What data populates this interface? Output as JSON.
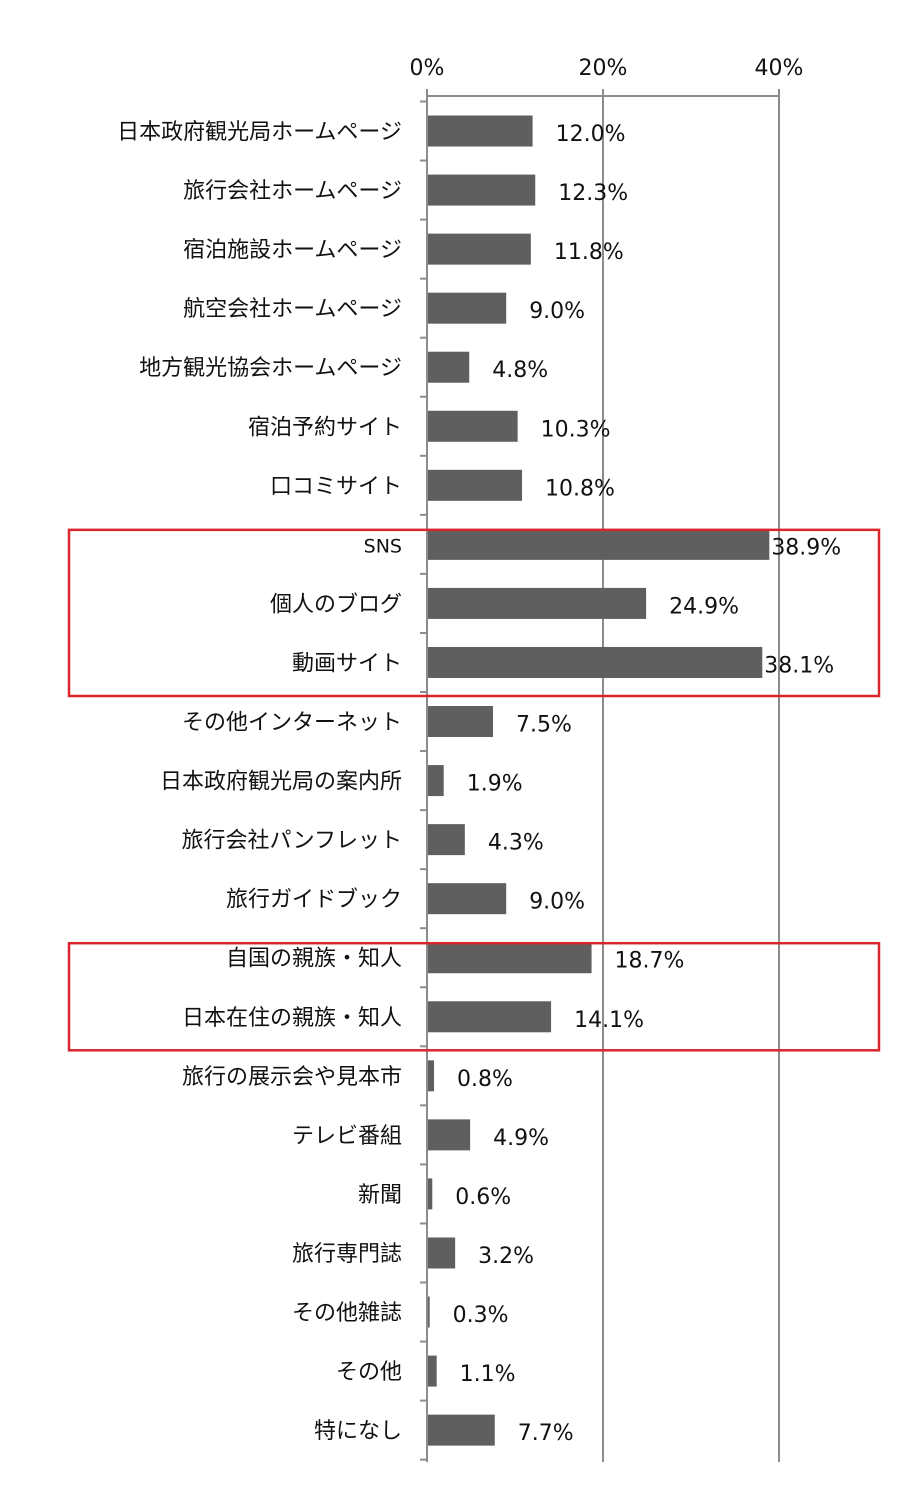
{
  "chart_data": {
    "type": "bar",
    "orientation": "horizontal",
    "title": "",
    "xlabel": "",
    "ylabel": "",
    "xlim": [
      0,
      40
    ],
    "x_ticks": [
      0,
      20,
      40
    ],
    "x_tick_labels": [
      "0%",
      "20%",
      "40%"
    ],
    "axis_position": "top",
    "grid": true,
    "legend": "none",
    "bar_color": "#5f5f5f",
    "highlight_color": "#d9262c",
    "categories": [
      "日本政府観光局ホームページ",
      "旅行会社ホームページ",
      "宿泊施設ホームページ",
      "航空会社ホームページ",
      "地方観光協会ホームページ",
      "宿泊予約サイト",
      "口コミサイト",
      "SNS",
      "個人のブログ",
      "動画サイト",
      "その他インターネット",
      "日本政府観光局の案内所",
      "旅行会社パンフレット",
      "旅行ガイドブック",
      "自国の親族・知人",
      "日本在住の親族・知人",
      "旅行の展示会や見本市",
      "テレビ番組",
      "新聞",
      "旅行専門誌",
      "その他雑誌",
      "その他",
      "特になし"
    ],
    "values": [
      12.0,
      12.3,
      11.8,
      9.0,
      4.8,
      10.3,
      10.8,
      38.9,
      24.9,
      38.1,
      7.5,
      1.9,
      4.3,
      9.0,
      18.7,
      14.1,
      0.8,
      4.9,
      0.6,
      3.2,
      0.3,
      1.1,
      7.7
    ],
    "value_labels": [
      "12.0%",
      "12.3%",
      "11.8%",
      "9.0%",
      "4.8%",
      "10.3%",
      "10.8%",
      "38.9%",
      "24.9%",
      "38.1%",
      "7.5%",
      "1.9%",
      "4.3%",
      "9.0%",
      "18.7%",
      "14.1%",
      "0.8%",
      "4.9%",
      "0.6%",
      "3.2%",
      "0.3%",
      "1.1%",
      "7.7%"
    ],
    "highlight_groups": [
      {
        "from": 7,
        "to": 9
      },
      {
        "from": 14,
        "to": 15
      }
    ]
  }
}
